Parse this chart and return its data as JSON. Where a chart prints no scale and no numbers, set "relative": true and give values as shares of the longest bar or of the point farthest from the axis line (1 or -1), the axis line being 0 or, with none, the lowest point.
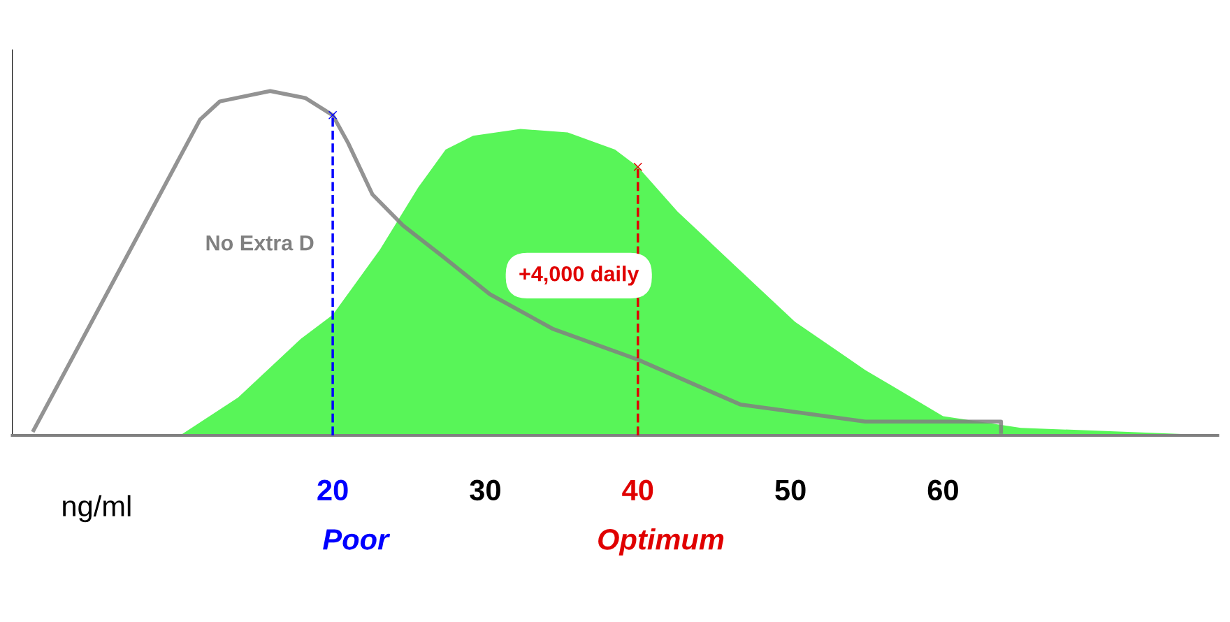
{
  "chart_data": {
    "type": "area",
    "relative": true,
    "xlabel": "ng/ml",
    "xlim": [
      -1,
      78
    ],
    "xticks": [
      20,
      30,
      40,
      50,
      60
    ],
    "tick_labels": "x",
    "grid": false,
    "series": [
      {
        "name": "No Extra D",
        "type": "line",
        "color": "#808080",
        "x": [
          0.4,
          11.3,
          12.6,
          15.9,
          18.2,
          20,
          21,
          22.6,
          24.6,
          27.2,
          30.3,
          34.4,
          40,
          43.6,
          46.7,
          54.9,
          63.8,
          63.8
        ],
        "values": [
          0.015,
          0.917,
          0.97,
          1.0,
          0.98,
          0.93,
          0.85,
          0.7,
          0.61,
          0.52,
          0.41,
          0.31,
          0.22,
          0.15,
          0.09,
          0.04,
          0.04,
          0.01
        ]
      },
      {
        "name": "+4,000 daily",
        "color": "#58f558",
        "x": [
          10,
          13.8,
          17.9,
          20,
          23.1,
          25.6,
          27.4,
          29.2,
          32.3,
          35.4,
          38.5,
          40,
          42.6,
          46.2,
          50.3,
          54.9,
          60,
          65.1,
          78
        ],
        "values": [
          0,
          0.11,
          0.28,
          0.35,
          0.54,
          0.72,
          0.83,
          0.87,
          0.89,
          0.88,
          0.83,
          0.78,
          0.65,
          0.5,
          0.33,
          0.19,
          0.056,
          0.022,
          0
        ]
      }
    ],
    "ref_lines": [
      {
        "axis": "x",
        "value": 20,
        "label": "Poor",
        "color": "#0000ff",
        "line_style": "dashed"
      },
      {
        "axis": "x",
        "value": 40,
        "label": "Optimum",
        "color": "#e00000",
        "line_style": "dashed"
      }
    ]
  }
}
